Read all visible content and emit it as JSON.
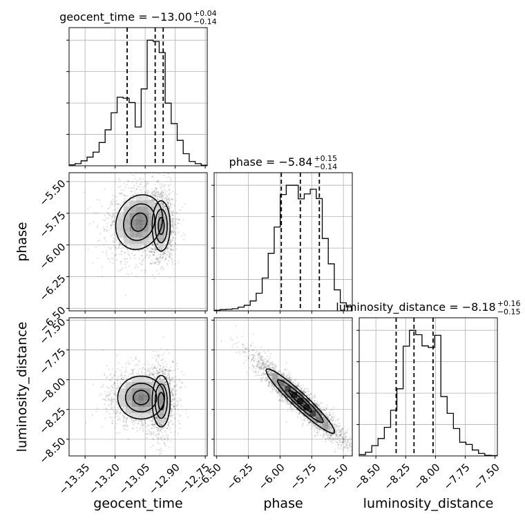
{
  "chart_data": {
    "type": "corner",
    "parameters": [
      "geocent_time",
      "phase",
      "luminosity_distance"
    ],
    "axis_labels": {
      "geocent_time": "geocent_time",
      "phase": "phase",
      "luminosity_distance": "luminosity_distance"
    },
    "ranges": {
      "geocent_time": [
        -13.43,
        -12.74
      ],
      "phase": [
        -6.52,
        -5.43
      ],
      "luminosity_distance": [
        -8.64,
        -7.48
      ]
    },
    "ticks": {
      "geocent_time": [
        -13.35,
        -13.2,
        -13.05,
        -12.9,
        -12.75
      ],
      "phase": [
        -6.5,
        -6.25,
        -6.0,
        -5.75,
        -5.5
      ],
      "luminosity_distance": [
        -8.5,
        -8.25,
        -8.0,
        -7.75,
        -7.5
      ]
    },
    "tick_labels": {
      "geocent_time": [
        "−13.35",
        "−13.20",
        "−13.05",
        "−12.90",
        "−12.75"
      ],
      "phase": [
        "−6.50",
        "−6.25",
        "−6.00",
        "−5.75",
        "−5.50"
      ],
      "luminosity_distance": [
        "−8.50",
        "−8.25",
        "−8.00",
        "−7.75",
        "−7.50"
      ]
    },
    "titles": [
      {
        "param": "geocent_time",
        "prefix": "geocent_time = −13.00",
        "plus": "+0.04",
        "minus": "−0.14"
      },
      {
        "param": "phase",
        "prefix": "phase = −5.84",
        "plus": "+0.15",
        "minus": "−0.14"
      },
      {
        "param": "luminosity_distance",
        "prefix": "luminosity_distance = −8.18",
        "plus": "+0.16",
        "minus": "−0.15"
      }
    ],
    "quantile_lines": {
      "geocent_time": [
        -13.14,
        -13.0,
        -12.96
      ],
      "phase": [
        -5.99,
        -5.84,
        -5.69
      ],
      "luminosity_distance": [
        -8.33,
        -8.18,
        -8.02
      ]
    },
    "histograms": {
      "geocent_time": {
        "edges": [
          -13.43,
          -12.74
        ],
        "counts": [
          0.3,
          0.7,
          1.6,
          2.8,
          4.4,
          7.5,
          11.6,
          17.1,
          22.1,
          21.8,
          20.4,
          12.5,
          24.8,
          40.5,
          40.1,
          36.5,
          20.2,
          13.6,
          8.2,
          3.9,
          1.4,
          0.7,
          0.2
        ]
      },
      "phase": {
        "edges": [
          -6.52,
          -5.43
        ],
        "counts": [
          0.2,
          0.4,
          0.5,
          0.7,
          1.2,
          1.8,
          3.2,
          5.7,
          10.6,
          18.6,
          27.1,
          37.6,
          40.6,
          40.6,
          36.2,
          37.8,
          39.3,
          36.3,
          23.4,
          15.2,
          6.8,
          2.6,
          1.3
        ]
      },
      "luminosity_distance": {
        "edges": [
          -8.64,
          -7.48
        ],
        "counts": [
          0.4,
          1.2,
          3.3,
          5.6,
          9.2,
          14.7,
          21.6,
          35.3,
          40.4,
          39.0,
          35.4,
          34.9,
          38.8,
          19.1,
          13.7,
          8.8,
          4.4,
          3.7,
          1.9,
          0.8,
          0.2,
          0.1
        ]
      }
    },
    "joint_2d": [
      {
        "x_param": "geocent_time",
        "y_param": "phase",
        "modes": [
          {
            "mean": [
              -13.08,
              -5.82
            ],
            "sd": [
              0.065,
              0.12
            ],
            "rho": 0.15,
            "weight": 0.55
          },
          {
            "mean": [
              -12.97,
              -5.85
            ],
            "sd": [
              0.025,
              0.11
            ],
            "rho": 0.0,
            "weight": 0.45
          }
        ]
      },
      {
        "x_param": "geocent_time",
        "y_param": "luminosity_distance",
        "modes": [
          {
            "mean": [
              -13.07,
              -8.15
            ],
            "sd": [
              0.065,
              0.1
            ],
            "rho": 0.0,
            "weight": 0.55
          },
          {
            "mean": [
              -12.97,
              -8.18
            ],
            "sd": [
              0.025,
              0.12
            ],
            "rho": 0.0,
            "weight": 0.45
          }
        ]
      },
      {
        "x_param": "phase",
        "y_param": "luminosity_distance",
        "modes": [
          {
            "mean": [
              -5.84,
              -8.18
            ],
            "sd": [
              0.15,
              0.15
            ],
            "rho": -0.95,
            "weight": 1.0
          }
        ]
      }
    ],
    "grid": true
  }
}
